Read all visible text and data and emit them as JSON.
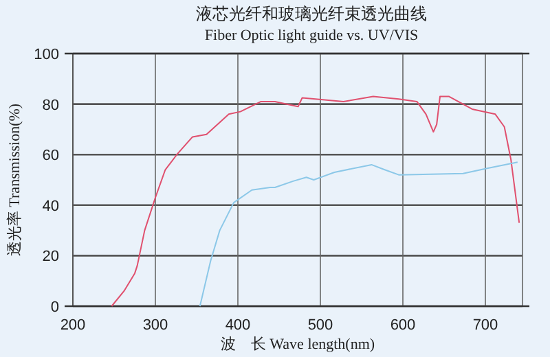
{
  "chart_data": {
    "type": "line",
    "title": "液芯光纤和玻璃光纤束透光曲线",
    "subtitle": "Fiber Optic light guide vs. UV/VIS",
    "xlabel": "波　长  Wave length(nm)",
    "ylabel": "透光率  Transmission(%)",
    "xlim": [
      200,
      745
    ],
    "ylim": [
      0,
      100
    ],
    "xticks": [
      200,
      300,
      400,
      500,
      600,
      700
    ],
    "yticks": [
      0,
      20,
      40,
      60,
      80,
      100
    ],
    "grid": true,
    "series": [
      {
        "color": "#e0506e",
        "x": [
          247,
          262,
          275,
          278,
          287,
          300,
          312,
          326,
          345,
          362,
          389,
          403,
          428,
          445,
          473,
          478,
          528,
          564,
          595,
          617,
          628,
          637,
          641,
          645,
          656,
          684,
          712,
          723,
          731,
          741
        ],
        "values": [
          0,
          6,
          13,
          16,
          30,
          43,
          54,
          60,
          67,
          68,
          76,
          77,
          81,
          81,
          79,
          82.5,
          81,
          83,
          82,
          81,
          76,
          69,
          72,
          83,
          83,
          78,
          76,
          71,
          58,
          33
        ]
      },
      {
        "color": "#8cc8e8",
        "x": [
          354,
          367,
          378,
          395,
          417,
          439,
          445,
          467,
          483,
          492,
          517,
          562,
          578,
          595,
          673,
          701,
          739
        ],
        "values": [
          0,
          18,
          30,
          41,
          46,
          47,
          47,
          49.5,
          51,
          50,
          53,
          56,
          54,
          52,
          52.5,
          54.5,
          57
        ]
      }
    ]
  }
}
